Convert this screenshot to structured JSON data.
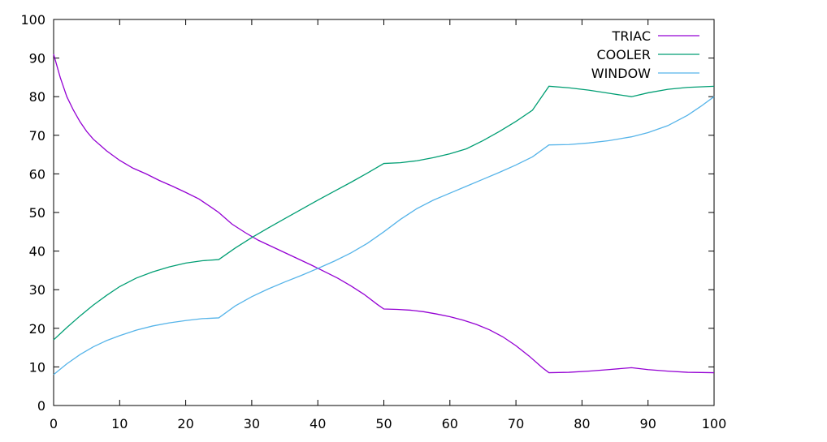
{
  "chart_data": {
    "type": "line",
    "title": "",
    "xlabel": "",
    "ylabel": "",
    "xlim": [
      0,
      100
    ],
    "ylim": [
      0,
      100
    ],
    "xticks": [
      0,
      10,
      20,
      30,
      40,
      50,
      60,
      70,
      80,
      90,
      100
    ],
    "yticks": [
      0,
      10,
      20,
      30,
      40,
      50,
      60,
      70,
      80,
      90,
      100
    ],
    "grid": false,
    "legend_position": "top-right",
    "series": [
      {
        "name": "TRIAC",
        "color": "#9400d3",
        "points": [
          [
            0,
            91
          ],
          [
            1,
            85
          ],
          [
            2,
            80
          ],
          [
            3,
            76.5
          ],
          [
            4,
            73.5
          ],
          [
            5,
            71
          ],
          [
            6,
            69
          ],
          [
            8,
            66
          ],
          [
            10,
            63.5
          ],
          [
            12,
            61.5
          ],
          [
            14,
            60
          ],
          [
            16,
            58.3
          ],
          [
            18,
            56.8
          ],
          [
            20,
            55.2
          ],
          [
            22,
            53.5
          ],
          [
            24,
            51.2
          ],
          [
            25,
            50
          ],
          [
            27,
            47
          ],
          [
            29,
            44.8
          ],
          [
            31,
            42.8
          ],
          [
            33,
            41.2
          ],
          [
            35,
            39.6
          ],
          [
            37,
            38
          ],
          [
            39,
            36.4
          ],
          [
            41,
            34.7
          ],
          [
            43,
            33
          ],
          [
            45,
            31
          ],
          [
            47,
            28.8
          ],
          [
            49,
            26.2
          ],
          [
            50,
            25
          ],
          [
            52,
            24.9
          ],
          [
            54,
            24.7
          ],
          [
            56,
            24.3
          ],
          [
            58,
            23.7
          ],
          [
            60,
            23
          ],
          [
            62,
            22.1
          ],
          [
            64,
            21
          ],
          [
            66,
            19.6
          ],
          [
            68,
            17.8
          ],
          [
            70,
            15.5
          ],
          [
            72,
            12.8
          ],
          [
            74,
            9.8
          ],
          [
            75,
            8.5
          ],
          [
            78,
            8.6
          ],
          [
            81,
            8.9
          ],
          [
            84,
            9.3
          ],
          [
            87.5,
            9.8
          ],
          [
            90,
            9.3
          ],
          [
            93,
            8.9
          ],
          [
            96,
            8.6
          ],
          [
            100,
            8.5
          ]
        ]
      },
      {
        "name": "COOLER",
        "color": "#009e73",
        "points": [
          [
            0,
            17
          ],
          [
            2,
            20.2
          ],
          [
            4,
            23.2
          ],
          [
            6,
            26
          ],
          [
            8,
            28.5
          ],
          [
            10,
            30.8
          ],
          [
            12.5,
            33
          ],
          [
            15,
            34.6
          ],
          [
            17.5,
            35.9
          ],
          [
            20,
            36.9
          ],
          [
            22.5,
            37.5
          ],
          [
            25,
            37.8
          ],
          [
            27.5,
            40.8
          ],
          [
            30,
            43.5
          ],
          [
            32.5,
            46
          ],
          [
            35,
            48.4
          ],
          [
            37.5,
            50.8
          ],
          [
            40,
            53.2
          ],
          [
            42.5,
            55.5
          ],
          [
            45,
            57.8
          ],
          [
            47.5,
            60.2
          ],
          [
            50,
            62.7
          ],
          [
            52.5,
            62.9
          ],
          [
            55,
            63.4
          ],
          [
            57.5,
            64.2
          ],
          [
            60,
            65.2
          ],
          [
            62.5,
            66.5
          ],
          [
            65,
            68.6
          ],
          [
            67.5,
            71
          ],
          [
            70,
            73.6
          ],
          [
            72.5,
            76.5
          ],
          [
            75,
            82.7
          ],
          [
            78,
            82.3
          ],
          [
            81,
            81.7
          ],
          [
            84,
            80.9
          ],
          [
            87.5,
            80
          ],
          [
            90,
            81
          ],
          [
            93,
            81.9
          ],
          [
            96,
            82.4
          ],
          [
            100,
            82.7
          ]
        ]
      },
      {
        "name": "WINDOW",
        "color": "#56b4e9",
        "points": [
          [
            0,
            8
          ],
          [
            2,
            10.8
          ],
          [
            4,
            13.2
          ],
          [
            6,
            15.2
          ],
          [
            8,
            16.8
          ],
          [
            10,
            18.1
          ],
          [
            12.5,
            19.5
          ],
          [
            15,
            20.6
          ],
          [
            17.5,
            21.4
          ],
          [
            20,
            22
          ],
          [
            22.5,
            22.5
          ],
          [
            25,
            22.7
          ],
          [
            27.5,
            25.8
          ],
          [
            30,
            28.2
          ],
          [
            32.5,
            30.2
          ],
          [
            35,
            32
          ],
          [
            37.5,
            33.7
          ],
          [
            40,
            35.5
          ],
          [
            42.5,
            37.4
          ],
          [
            45,
            39.5
          ],
          [
            47.5,
            42
          ],
          [
            50,
            45
          ],
          [
            52.5,
            48.2
          ],
          [
            55,
            51
          ],
          [
            57.5,
            53.2
          ],
          [
            60,
            55
          ],
          [
            62.5,
            56.8
          ],
          [
            65,
            58.6
          ],
          [
            67.5,
            60.4
          ],
          [
            70,
            62.3
          ],
          [
            72.5,
            64.4
          ],
          [
            75,
            67.5
          ],
          [
            78,
            67.6
          ],
          [
            81,
            68
          ],
          [
            84,
            68.6
          ],
          [
            87.5,
            69.6
          ],
          [
            90,
            70.7
          ],
          [
            93,
            72.5
          ],
          [
            96,
            75.2
          ],
          [
            98,
            77.5
          ],
          [
            100,
            80
          ]
        ]
      }
    ]
  }
}
